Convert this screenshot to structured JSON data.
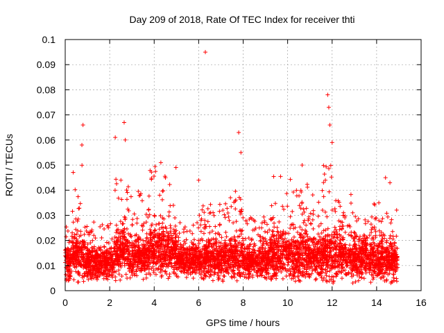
{
  "chart_data": {
    "type": "scatter",
    "title": "Day 209 of 2018, Rate Of TEC Index for receiver thti",
    "xlabel": "GPS time / hours",
    "ylabel": "ROTI / TECUs",
    "xlim": [
      0,
      16
    ],
    "ylim": [
      0,
      0.1
    ],
    "xticks": [
      "0",
      "2",
      "4",
      "6",
      "8",
      "10",
      "12",
      "14",
      "16"
    ],
    "yticks": [
      "0",
      "0.01",
      "0.02",
      "0.03",
      "0.04",
      "0.05",
      "0.06",
      "0.07",
      "0.08",
      "0.09",
      "0.1"
    ],
    "grid": true,
    "marker": "+",
    "color": "#ff0000",
    "notable_points": [
      {
        "x": 6.3,
        "y": 0.095
      },
      {
        "x": 11.8,
        "y": 0.078
      },
      {
        "x": 11.85,
        "y": 0.073
      },
      {
        "x": 2.65,
        "y": 0.067
      },
      {
        "x": 0.8,
        "y": 0.066
      },
      {
        "x": 11.9,
        "y": 0.066
      },
      {
        "x": 7.8,
        "y": 0.063
      },
      {
        "x": 2.25,
        "y": 0.061
      },
      {
        "x": 2.7,
        "y": 0.06
      },
      {
        "x": 0.75,
        "y": 0.058
      },
      {
        "x": 12.0,
        "y": 0.059
      },
      {
        "x": 7.9,
        "y": 0.055
      },
      {
        "x": 4.3,
        "y": 0.051
      },
      {
        "x": 10.65,
        "y": 0.05
      },
      {
        "x": 6.0,
        "y": 0.044
      },
      {
        "x": 14.4,
        "y": 0.045
      },
      {
        "x": 14.6,
        "y": 0.043
      },
      {
        "x": 14.1,
        "y": 0.035
      }
    ],
    "segments": [
      {
        "x_start": 0.0,
        "x_end": 0.25,
        "base": 0.011,
        "spread": 0.012,
        "peak": 0.03
      },
      {
        "x_start": 0.25,
        "x_end": 0.9,
        "base": 0.014,
        "spread": 0.016,
        "peak": 0.05
      },
      {
        "x_start": 0.9,
        "x_end": 2.2,
        "base": 0.011,
        "spread": 0.01,
        "peak": 0.028
      },
      {
        "x_start": 2.2,
        "x_end": 2.9,
        "base": 0.015,
        "spread": 0.016,
        "peak": 0.045
      },
      {
        "x_start": 2.9,
        "x_end": 3.8,
        "base": 0.013,
        "spread": 0.012,
        "peak": 0.04
      },
      {
        "x_start": 3.8,
        "x_end": 5.0,
        "base": 0.016,
        "spread": 0.016,
        "peak": 0.05
      },
      {
        "x_start": 5.0,
        "x_end": 6.0,
        "base": 0.012,
        "spread": 0.01,
        "peak": 0.03
      },
      {
        "x_start": 6.0,
        "x_end": 7.4,
        "base": 0.012,
        "spread": 0.012,
        "peak": 0.035
      },
      {
        "x_start": 7.4,
        "x_end": 8.0,
        "base": 0.013,
        "spread": 0.014,
        "peak": 0.04
      },
      {
        "x_start": 8.0,
        "x_end": 9.2,
        "base": 0.012,
        "spread": 0.011,
        "peak": 0.03
      },
      {
        "x_start": 9.2,
        "x_end": 10.9,
        "base": 0.014,
        "spread": 0.016,
        "peak": 0.046
      },
      {
        "x_start": 10.9,
        "x_end": 11.6,
        "base": 0.013,
        "spread": 0.013,
        "peak": 0.04
      },
      {
        "x_start": 11.6,
        "x_end": 12.4,
        "base": 0.014,
        "spread": 0.016,
        "peak": 0.05
      },
      {
        "x_start": 12.4,
        "x_end": 13.6,
        "base": 0.013,
        "spread": 0.013,
        "peak": 0.04
      },
      {
        "x_start": 13.6,
        "x_end": 14.95,
        "base": 0.012,
        "spread": 0.012,
        "peak": 0.035
      }
    ],
    "density_per_hour": 320,
    "y_floor": 0.003
  }
}
